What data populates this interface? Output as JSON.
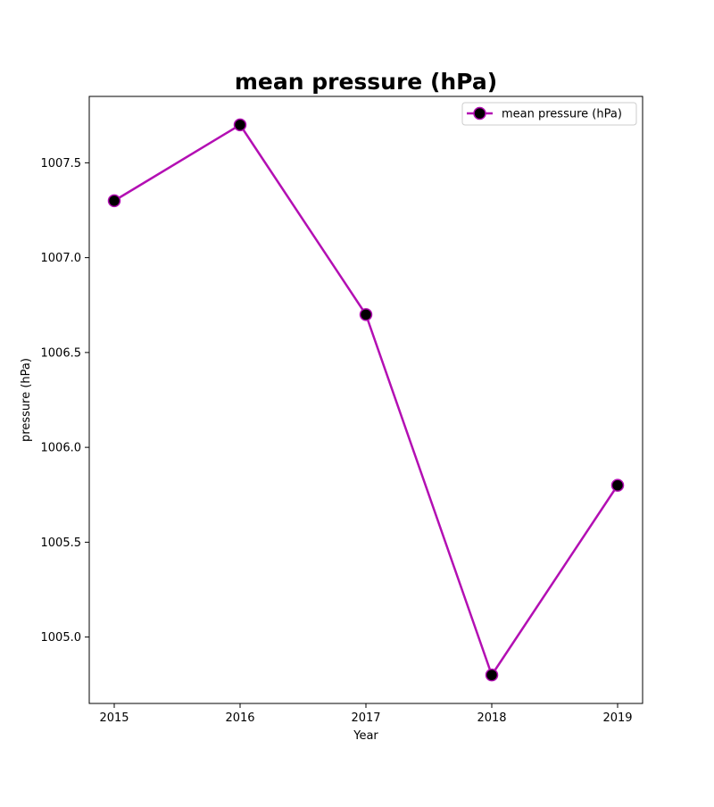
{
  "chart_data": {
    "type": "line",
    "title": "mean pressure (hPa)",
    "xlabel": "Year",
    "ylabel": "pressure (hPa)",
    "x": [
      "2015",
      "2016",
      "2017",
      "2018",
      "2019"
    ],
    "series": [
      {
        "name": "mean pressure (hPa)",
        "values": [
          1007.3,
          1007.7,
          1006.7,
          1004.8,
          1005.8
        ],
        "line_color": "#b30fb3",
        "marker_color": "#000000"
      }
    ],
    "yticks": [
      1005.0,
      1005.5,
      1006.0,
      1006.5,
      1007.0,
      1007.5
    ],
    "ytick_labels": [
      "1005.0",
      "1005.5",
      "1006.0",
      "1006.5",
      "1007.0",
      "1007.5"
    ],
    "ylim": [
      1004.65,
      1007.85
    ],
    "grid": false,
    "legend_position": "top-right"
  }
}
